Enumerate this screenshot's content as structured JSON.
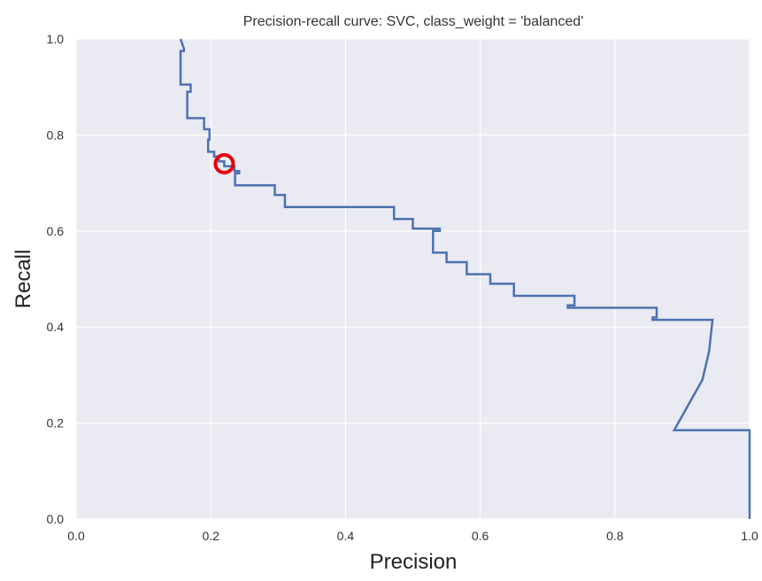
{
  "chart_data": {
    "type": "line",
    "title": "Precision-recall curve: SVC, class_weight = 'balanced'",
    "xlabel": "Precision",
    "ylabel": "Recall",
    "xlim": [
      0.0,
      1.0
    ],
    "ylim": [
      0.0,
      1.0
    ],
    "xticks": [
      "0.0",
      "0.2",
      "0.4",
      "0.6",
      "0.8",
      "1.0"
    ],
    "yticks": [
      "0.0",
      "0.2",
      "0.4",
      "0.6",
      "0.8",
      "1.0"
    ],
    "grid": true,
    "colors": {
      "plot_background": "#EAEAF2",
      "grid": "#FFFFFF",
      "line": "#4C72B0",
      "marker": "#E8000B"
    },
    "series": [
      {
        "precision": [
          0.155,
          0.16,
          0.16,
          0.155,
          0.155,
          0.17,
          0.17,
          0.165,
          0.165,
          0.19,
          0.19,
          0.198,
          0.198,
          0.196,
          0.196,
          0.205,
          0.205,
          0.212,
          0.212,
          0.22,
          0.22,
          0.235,
          0.235,
          0.242,
          0.242,
          0.236,
          0.236,
          0.295,
          0.295,
          0.31,
          0.31,
          0.472,
          0.472,
          0.5,
          0.5,
          0.54,
          0.54,
          0.53,
          0.53,
          0.55,
          0.55,
          0.58,
          0.58,
          0.615,
          0.615,
          0.65,
          0.65,
          0.74,
          0.74,
          0.73,
          0.73,
          0.862,
          0.862,
          0.856,
          0.856,
          0.945,
          0.94,
          0.93,
          0.91,
          0.888,
          1.0,
          1.0
        ],
        "recall": [
          1.0,
          0.98,
          0.975,
          0.975,
          0.905,
          0.905,
          0.89,
          0.89,
          0.835,
          0.835,
          0.812,
          0.812,
          0.79,
          0.79,
          0.765,
          0.765,
          0.755,
          0.755,
          0.745,
          0.745,
          0.735,
          0.735,
          0.725,
          0.725,
          0.72,
          0.72,
          0.695,
          0.695,
          0.675,
          0.675,
          0.65,
          0.65,
          0.625,
          0.625,
          0.605,
          0.605,
          0.6,
          0.6,
          0.555,
          0.555,
          0.535,
          0.535,
          0.51,
          0.51,
          0.49,
          0.49,
          0.465,
          0.465,
          0.445,
          0.445,
          0.44,
          0.44,
          0.42,
          0.42,
          0.415,
          0.415,
          0.35,
          0.29,
          0.24,
          0.185,
          0.185,
          0.0
        ]
      }
    ],
    "highlight_point": {
      "precision": 0.22,
      "recall": 0.74
    }
  }
}
